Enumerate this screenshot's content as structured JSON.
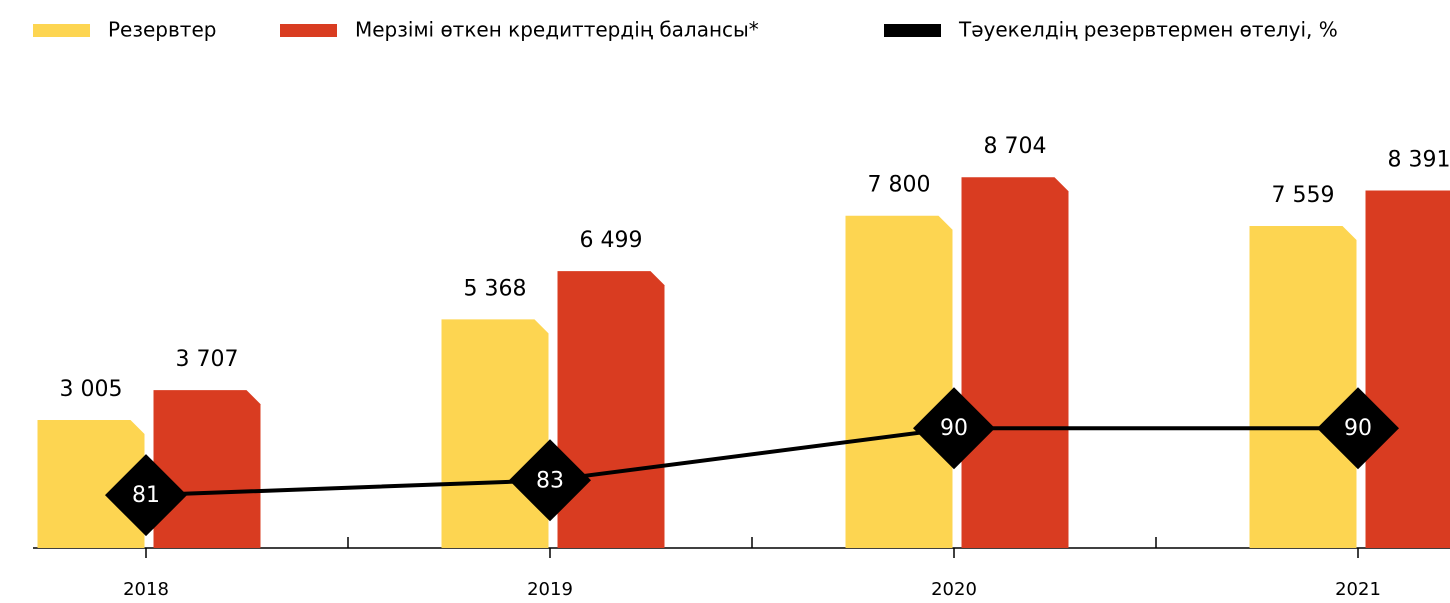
{
  "chart_data": {
    "type": "bar",
    "categories": [
      "2018",
      "2019",
      "2020",
      "2021"
    ],
    "ylim": [
      0,
      11455
    ],
    "y2lim": [
      73.9,
      139.5
    ],
    "legend": "top-left",
    "series": [
      {
        "name": "Резервтер",
        "color": "#fdd551",
        "values": [
          3005,
          5368,
          7800,
          7559
        ],
        "value_labels": [
          "3 005",
          "5 368",
          "7 800",
          "7 559"
        ]
      },
      {
        "name": "Мерзімі өткен кредиттердің балансы*",
        "color": "#d93c21",
        "values": [
          3707,
          6499,
          8704,
          8391
        ],
        "value_labels": [
          "3 707",
          "6 499",
          "8 704",
          "8 391"
        ]
      },
      {
        "name": "Тәуекелдің резервтермен өтелуі, %",
        "color": "#000000",
        "type": "line",
        "axis": "y2",
        "values": [
          81,
          83,
          90,
          90
        ]
      }
    ]
  }
}
